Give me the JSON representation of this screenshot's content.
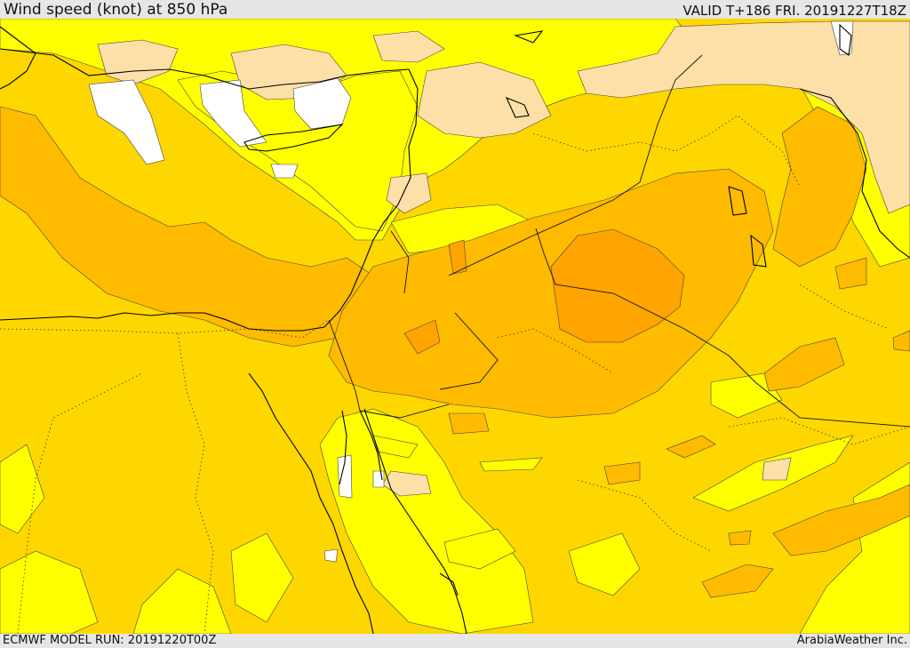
{
  "header": {
    "title": "Wind speed (knot) at 850 hPa",
    "valid": "VALID T+186 FRI. 20191227T18Z"
  },
  "footer": {
    "model_run": "ECMWF MODEL RUN: 20191220T00Z",
    "credit": "ArabiaWeather Inc."
  },
  "colors": {
    "band_white": "#ffffff",
    "band_peach": "#fde0a8",
    "band_yellow": "#ffff00",
    "band_gold": "#ffd700",
    "band_amber": "#ffbb00",
    "band_orange": "#ffa400",
    "coastline": "#000000"
  }
}
